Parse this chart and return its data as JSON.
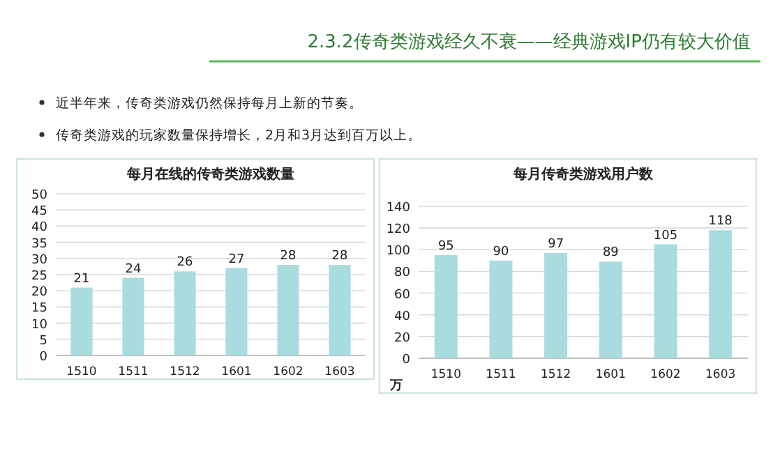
{
  "chart_data": [
    {
      "type": "other",
      "title": "2.3.2传奇类游戏经久不衰——经典游戏IP仍有较大价值",
      "annotations": [
        "近半年来，传奇类游戏仍然保持每月上新的节奏。",
        "传奇类游戏的玩家数量保持增长，2月和3月达到百万以上。"
      ]
    },
    {
      "type": "bar",
      "title": "每月在线的传奇类游戏数量",
      "categories": [
        "1510",
        "1511",
        "1512",
        "1601",
        "1602",
        "1603"
      ],
      "values": [
        21,
        24,
        26,
        27,
        28,
        28
      ],
      "color": "#a8dcdf",
      "ylim": [
        0,
        50
      ],
      "yticks": [
        0,
        5,
        10,
        15,
        20,
        25,
        30,
        35,
        40,
        45,
        50
      ],
      "grid": "y",
      "data_labels": true
    },
    {
      "type": "bar",
      "title": "每月传奇类游戏用户数",
      "ylabel": "万",
      "categories": [
        "1510",
        "1511",
        "1512",
        "1601",
        "1602",
        "1603"
      ],
      "values": [
        95,
        90,
        97,
        89,
        105,
        118
      ],
      "color": "#a8dcdf",
      "ylim": [
        0,
        140
      ],
      "yticks": [
        0,
        20,
        40,
        60,
        80,
        100,
        120,
        140
      ],
      "grid": "y",
      "data_labels": true
    }
  ]
}
